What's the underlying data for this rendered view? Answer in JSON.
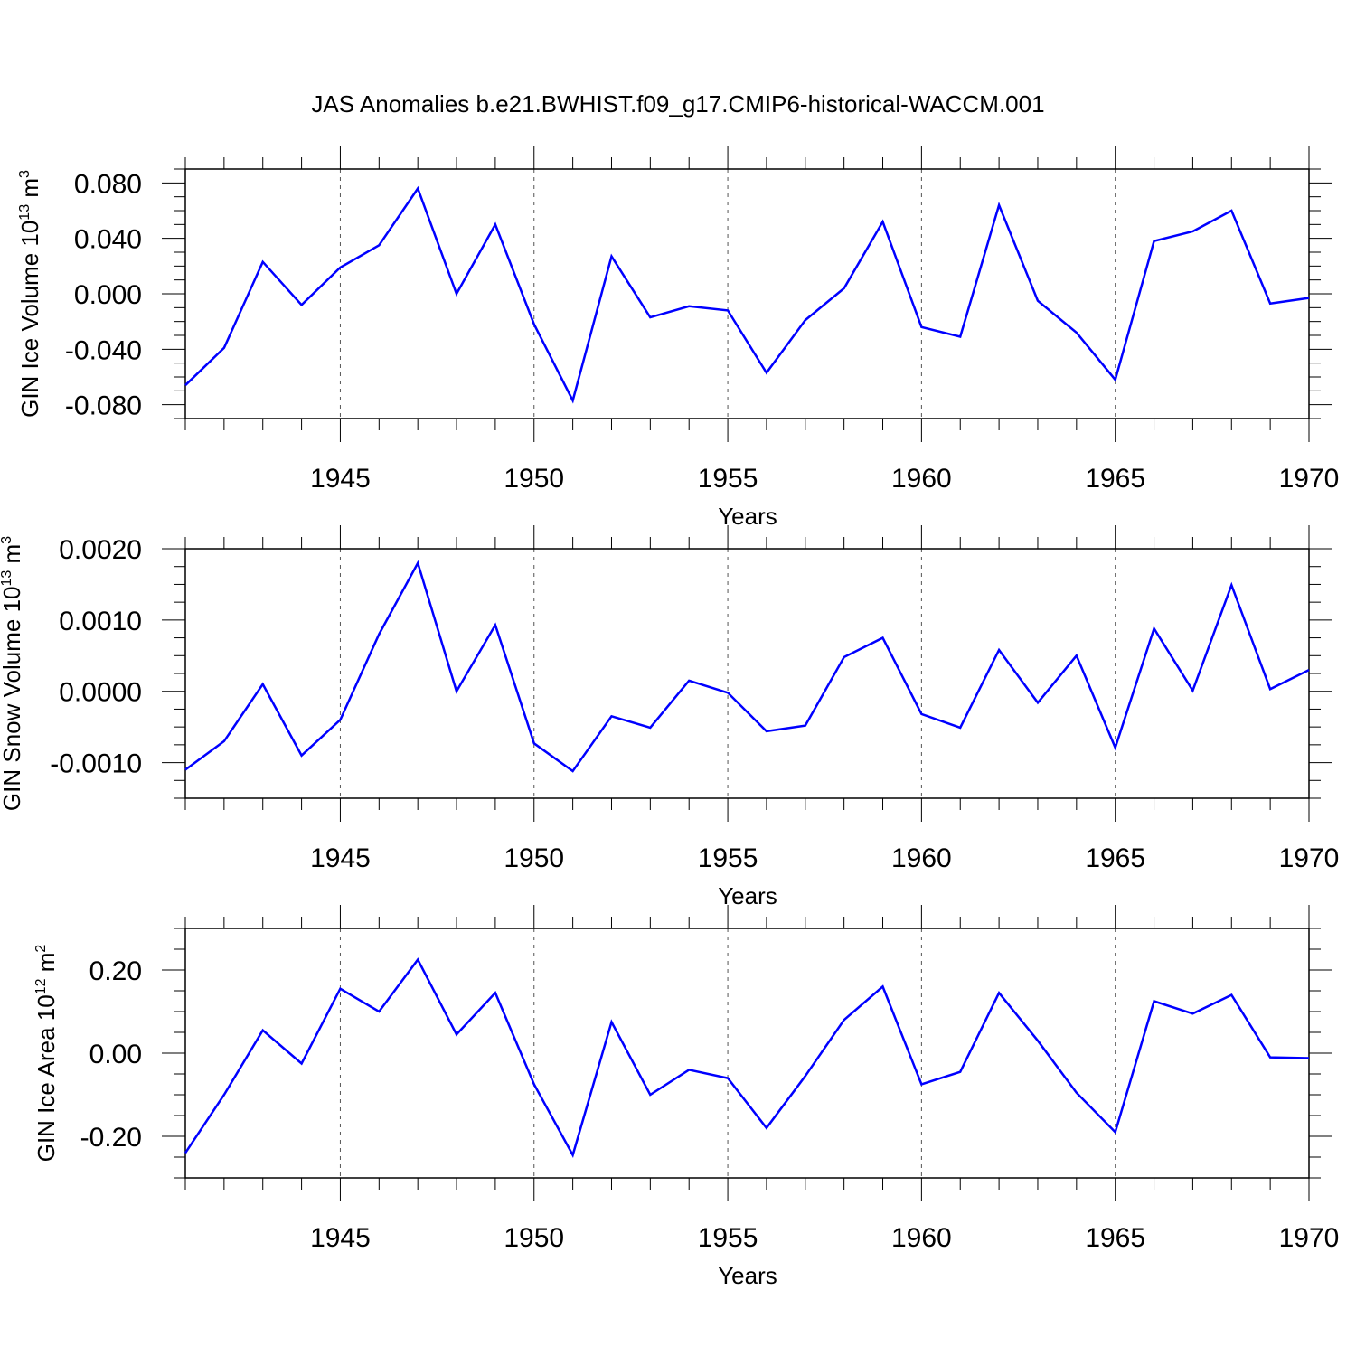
{
  "title": "JAS Anomalies b.e21.BWHIST.f09_g17.CMIP6-historical-WACCM.001",
  "line_color": "#0000ff",
  "chart_data": [
    {
      "type": "line",
      "ylabel": "GIN Ice Volume 10",
      "ylabel_sup": "13",
      "ylabel_unit": " m",
      "ylabel_unit_sup": "3",
      "xlabel": "Years",
      "xlim": [
        1941,
        1970
      ],
      "ylim": [
        -0.09,
        0.09
      ],
      "xticks": [
        1945,
        1950,
        1955,
        1960,
        1965,
        1970
      ],
      "xtick_labels": [
        "1945",
        "1950",
        "1955",
        "1960",
        "1965",
        "1970"
      ],
      "yticks": [
        -0.08,
        -0.04,
        0.0,
        0.04,
        0.08
      ],
      "ytick_labels": [
        "-0.080",
        "-0.040",
        "0.000",
        "0.040",
        "0.080"
      ],
      "grid": "vertical dashed at labeled years",
      "x": [
        1941,
        1942,
        1943,
        1944,
        1945,
        1946,
        1947,
        1948,
        1949,
        1950,
        1951,
        1952,
        1953,
        1954,
        1955,
        1956,
        1957,
        1958,
        1959,
        1960,
        1961,
        1962,
        1963,
        1964,
        1965,
        1966,
        1967,
        1968,
        1969,
        1970
      ],
      "series": [
        {
          "values": [
            -0.066,
            -0.039,
            0.023,
            -0.008,
            0.019,
            0.035,
            0.076,
            0.0,
            0.05,
            -0.022,
            -0.077,
            0.027,
            -0.017,
            -0.009,
            -0.012,
            -0.057,
            -0.019,
            0.004,
            0.052,
            -0.024,
            -0.031,
            0.064,
            -0.005,
            -0.028,
            -0.062,
            0.038,
            0.045,
            0.06,
            -0.007,
            -0.003
          ]
        }
      ]
    },
    {
      "type": "line",
      "ylabel": "GIN Snow Volume 10",
      "ylabel_sup": "13",
      "ylabel_unit": " m",
      "ylabel_unit_sup": "3",
      "xlabel": "Years",
      "xlim": [
        1941,
        1970
      ],
      "ylim": [
        -0.0015,
        0.002
      ],
      "xticks": [
        1945,
        1950,
        1955,
        1960,
        1965,
        1970
      ],
      "xtick_labels": [
        "1945",
        "1950",
        "1955",
        "1960",
        "1965",
        "1970"
      ],
      "yticks": [
        -0.001,
        0.0,
        0.001,
        0.002
      ],
      "ytick_labels": [
        "-0.0010",
        "0.0000",
        "0.0010",
        "0.0020"
      ],
      "grid": "vertical dashed at labeled years",
      "x": [
        1941,
        1942,
        1943,
        1944,
        1945,
        1946,
        1947,
        1948,
        1949,
        1950,
        1951,
        1952,
        1953,
        1954,
        1955,
        1956,
        1957,
        1958,
        1959,
        1960,
        1961,
        1962,
        1963,
        1964,
        1965,
        1966,
        1967,
        1968,
        1969,
        1970
      ],
      "series": [
        {
          "values": [
            -0.0011,
            -0.0007,
            0.0001,
            -0.0009,
            -0.0004,
            0.0008,
            0.0018,
            0.0,
            0.00093,
            -0.00073,
            -0.00112,
            -0.00035,
            -0.00051,
            0.00015,
            -2e-05,
            -0.00056,
            -0.00048,
            0.00048,
            0.00075,
            -0.00032,
            -0.00051,
            0.00058,
            -0.00016,
            0.0005,
            -0.00079,
            0.00088,
            1e-05,
            0.00149,
            3e-05,
            0.0003
          ]
        }
      ]
    },
    {
      "type": "line",
      "ylabel": "GIN Ice Area 10",
      "ylabel_sup": "12",
      "ylabel_unit": " m",
      "ylabel_unit_sup": "2",
      "xlabel": "Years",
      "xlim": [
        1941,
        1970
      ],
      "ylim": [
        -0.3,
        0.3
      ],
      "xticks": [
        1945,
        1950,
        1955,
        1960,
        1965,
        1970
      ],
      "xtick_labels": [
        "1945",
        "1950",
        "1955",
        "1960",
        "1965",
        "1970"
      ],
      "yticks": [
        -0.2,
        0.0,
        0.2
      ],
      "ytick_labels": [
        "-0.20",
        "0.00",
        "0.20"
      ],
      "grid": "vertical dashed at labeled years",
      "x": [
        1941,
        1942,
        1943,
        1944,
        1945,
        1946,
        1947,
        1948,
        1949,
        1950,
        1951,
        1952,
        1953,
        1954,
        1955,
        1956,
        1957,
        1958,
        1959,
        1960,
        1961,
        1962,
        1963,
        1964,
        1965,
        1966,
        1967,
        1968,
        1969,
        1970
      ],
      "series": [
        {
          "values": [
            -0.24,
            -0.1,
            0.055,
            -0.025,
            0.155,
            0.1,
            0.225,
            0.045,
            0.145,
            -0.075,
            -0.245,
            0.075,
            -0.1,
            -0.04,
            -0.06,
            -0.18,
            -0.055,
            0.08,
            0.16,
            -0.075,
            -0.045,
            0.145,
            0.03,
            -0.095,
            -0.19,
            0.125,
            0.095,
            0.14,
            -0.01,
            -0.012
          ]
        }
      ]
    }
  ]
}
